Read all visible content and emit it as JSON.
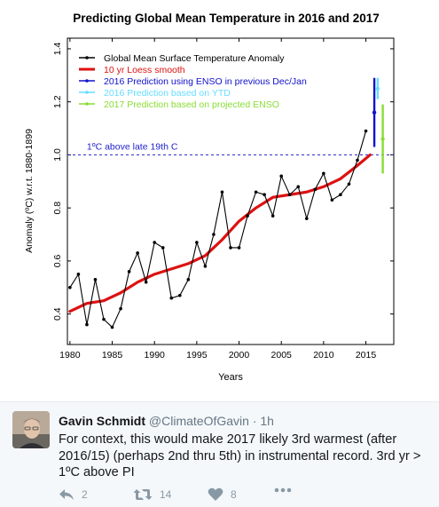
{
  "chart_data": {
    "type": "line",
    "title": "Predicting Global Mean Temperature in 2016 and 2017",
    "xlabel": "Years",
    "ylabel": "Anomaly (ºC) w.r.t. 1880-1899",
    "xlim": [
      1979.7,
      2018.3
    ],
    "ylim": [
      0.285,
      1.44
    ],
    "x_ticks": [
      "1980",
      "1985",
      "1990",
      "1995",
      "2000",
      "2005",
      "2010",
      "2015"
    ],
    "y_ticks": [
      "0.4",
      "0.6",
      "0.8",
      "1.0",
      "1.2",
      "1.4"
    ],
    "grid": false,
    "legend_position": "top-left",
    "reference_line": {
      "y": 1.0,
      "label": "1ºC above late 19th C",
      "color": "#2222cc"
    },
    "series": [
      {
        "name": "Global Mean Surface Temperature Anomaly",
        "color": "#000000",
        "style": "line-markers",
        "x": [
          1980,
          1981,
          1982,
          1983,
          1984,
          1985,
          1986,
          1987,
          1988,
          1989,
          1990,
          1991,
          1992,
          1993,
          1994,
          1995,
          1996,
          1997,
          1998,
          1999,
          2000,
          2001,
          2002,
          2003,
          2004,
          2005,
          2006,
          2007,
          2008,
          2009,
          2010,
          2011,
          2012,
          2013,
          2014,
          2015
        ],
        "y": [
          0.5,
          0.55,
          0.36,
          0.53,
          0.38,
          0.35,
          0.42,
          0.56,
          0.63,
          0.52,
          0.67,
          0.65,
          0.46,
          0.47,
          0.53,
          0.67,
          0.58,
          0.7,
          0.86,
          0.65,
          0.65,
          0.77,
          0.86,
          0.85,
          0.77,
          0.92,
          0.85,
          0.88,
          0.76,
          0.87,
          0.93,
          0.83,
          0.85,
          0.89,
          0.98,
          1.09
        ]
      },
      {
        "name": "10 yr Loess smooth",
        "color": "#dd1111",
        "style": "thick-line",
        "x": [
          1980,
          1982,
          1984,
          1986,
          1988,
          1990,
          1992,
          1994,
          1996,
          1998,
          2000,
          2002,
          2004,
          2006,
          2008,
          2010,
          2012,
          2014,
          2015.5
        ],
        "y": [
          0.41,
          0.44,
          0.45,
          0.48,
          0.52,
          0.55,
          0.57,
          0.59,
          0.62,
          0.68,
          0.75,
          0.8,
          0.84,
          0.85,
          0.86,
          0.88,
          0.91,
          0.96,
          1.0
        ]
      },
      {
        "name": "2016 Prediction using ENSO in previous Dec/Jan",
        "color": "#1111cc",
        "style": "errorbar",
        "x": 2016.0,
        "y": 1.16,
        "low": 1.03,
        "high": 1.29
      },
      {
        "name": "2016 Prediction based on YTD",
        "color": "#66ddff",
        "style": "errorbar",
        "x": 2016.4,
        "y": 1.25,
        "low": 1.21,
        "high": 1.29
      },
      {
        "name": "2017 Prediction based on projected ENSO",
        "color": "#88dd33",
        "style": "errorbar",
        "x": 2017.0,
        "y": 1.06,
        "low": 0.93,
        "high": 1.19
      }
    ]
  },
  "tweet": {
    "name": "Gavin Schmidt",
    "handle": "@ClimateOfGavin",
    "time": "· 1h",
    "text": "For context, this would make 2017 likely 3rd warmest (after 2016/15) (perhaps 2nd thru 5th) in instrumental record. 3rd yr > 1ºC above PI",
    "reply_count": "2",
    "retweet_count": "14",
    "like_count": "8",
    "avatar_icon": "user-photo-icon",
    "reply_icon": "reply-icon",
    "retweet_icon": "retweet-icon",
    "like_icon": "heart-icon",
    "more_icon": "more-dots-icon",
    "action_color": "#8899a6"
  }
}
